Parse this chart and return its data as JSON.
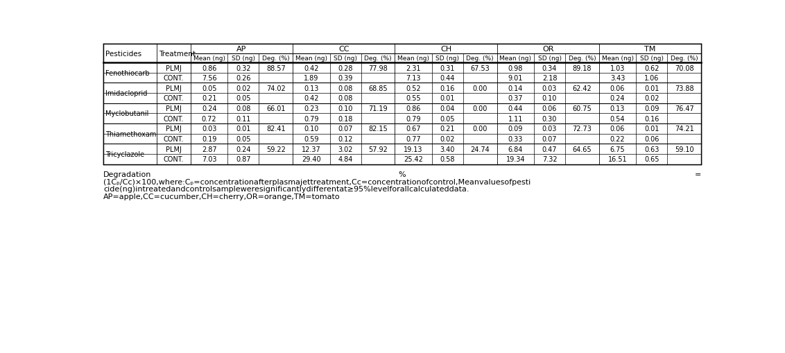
{
  "group_headers": [
    "AP",
    "CC",
    "CH",
    "OR",
    "TM"
  ],
  "sub_headers": [
    "Mean (ng)",
    "SD (ng)",
    "Deg. (%)"
  ],
  "rows": [
    [
      "Fenothiocarb",
      "PLMJ",
      "0.86",
      "0.32",
      "88.57",
      "0.42",
      "0.28",
      "77.98",
      "2.31",
      "0.31",
      "67.53",
      "0.98",
      "0.34",
      "89.18",
      "1.03",
      "0.62",
      "70.08"
    ],
    [
      "",
      "CONT.",
      "7.56",
      "0.26",
      "",
      "1.89",
      "0.39",
      "",
      "7.13",
      "0.44",
      "",
      "9.01",
      "2.18",
      "",
      "3.43",
      "1.06",
      ""
    ],
    [
      "Imidacloprid",
      "PLMJ",
      "0.05",
      "0.02",
      "74.02",
      "0.13",
      "0.08",
      "68.85",
      "0.52",
      "0.16",
      "0.00",
      "0.14",
      "0.03",
      "62.42",
      "0.06",
      "0.01",
      "73.88"
    ],
    [
      "",
      "CONT.",
      "0.21",
      "0.05",
      "",
      "0.42",
      "0.08",
      "",
      "0.55",
      "0.01",
      "",
      "0.37",
      "0.10",
      "",
      "0.24",
      "0.02",
      ""
    ],
    [
      "Myclobutanil",
      "PLMJ",
      "0.24",
      "0.08",
      "66.01",
      "0.23",
      "0.10",
      "71.19",
      "0.86",
      "0.04",
      "0.00",
      "0.44",
      "0.06",
      "60.75",
      "0.13",
      "0.09",
      "76.47"
    ],
    [
      "",
      "CONT.",
      "0.72",
      "0.11",
      "",
      "0.79",
      "0.18",
      "",
      "0.79",
      "0.05",
      "",
      "1.11",
      "0.30",
      "",
      "0.54",
      "0.16",
      ""
    ],
    [
      "Thiamethoxam",
      "PLMJ",
      "0.03",
      "0.01",
      "82.41",
      "0.10",
      "0.07",
      "82.15",
      "0.67",
      "0.21",
      "0.00",
      "0.09",
      "0.03",
      "72.73",
      "0.06",
      "0.01",
      "74.21"
    ],
    [
      "",
      "CONT.",
      "0.19",
      "0.05",
      "",
      "0.59",
      "0.12",
      "",
      "0.77",
      "0.02",
      "",
      "0.33",
      "0.07",
      "",
      "0.22",
      "0.06",
      ""
    ],
    [
      "Tricyclazole",
      "PLMJ",
      "2.87",
      "0.24",
      "59.22",
      "12.37",
      "3.02",
      "57.92",
      "19.13",
      "3.40",
      "24.74",
      "6.84",
      "0.47",
      "64.65",
      "6.75",
      "0.63",
      "59.10"
    ],
    [
      "",
      "CONT.",
      "7.03",
      "0.87",
      "",
      "29.40",
      "4.84",
      "",
      "25.42",
      "0.58",
      "",
      "19.34",
      "7.32",
      "",
      "16.51",
      "0.65",
      ""
    ]
  ],
  "col_widths_raw": [
    82,
    52,
    57,
    48,
    52,
    57,
    48,
    52,
    57,
    48,
    52,
    57,
    48,
    52,
    57,
    48,
    52
  ],
  "bg_color": "#ffffff",
  "line_color": "#000000"
}
